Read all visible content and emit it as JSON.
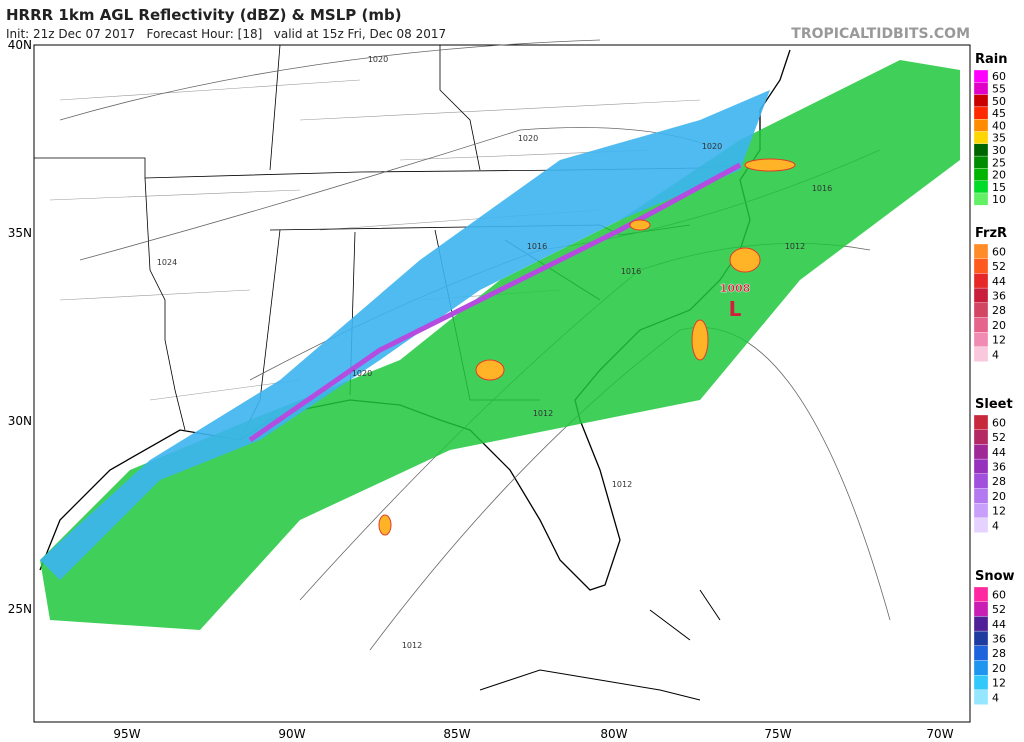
{
  "header": {
    "title": "HRRR 1km AGL Reflectivity (dBZ) & MSLP (mb)",
    "subtitle": "Init: 21z Dec 07 2017   Forecast Hour: [18]   valid at 15z Fri, Dec 08 2017",
    "site": "TROPICALTIDBITS.COM"
  },
  "map": {
    "lat_labels": [
      "40N",
      "35N",
      "30N",
      "25N"
    ],
    "lon_labels": [
      "95W",
      "90W",
      "85W",
      "80W",
      "75W",
      "70W"
    ],
    "isobar_labels": [
      "1020",
      "1020",
      "1020",
      "1024",
      "1016",
      "1016",
      "1016",
      "1012",
      "1020",
      "1012",
      "1012",
      "1012"
    ],
    "low": {
      "pressure": "1008",
      "symbol": "L"
    }
  },
  "legend": [
    {
      "title": "Rain",
      "labels": [
        60,
        55,
        50,
        45,
        40,
        35,
        30,
        25,
        20,
        15,
        10
      ],
      "colors": [
        "#ff00ff",
        "#e000c8",
        "#c80000",
        "#ff2800",
        "#ff8c00",
        "#ffd700",
        "#006400",
        "#008c00",
        "#00b400",
        "#00dc28",
        "#64f064"
      ]
    },
    {
      "title": "FrzR",
      "labels": [
        60,
        52,
        44,
        36,
        28,
        20,
        12,
        4
      ],
      "colors": [
        "#ff8c28",
        "#ff5a1e",
        "#e62828",
        "#c81e3c",
        "#d24664",
        "#e6648c",
        "#f08cb4",
        "#fac8dc"
      ]
    },
    {
      "title": "Sleet",
      "labels": [
        60,
        52,
        44,
        36,
        28,
        20,
        12,
        4
      ],
      "colors": [
        "#c8283c",
        "#b42864",
        "#a02896",
        "#9632be",
        "#a050dc",
        "#b478f0",
        "#c8a0fa",
        "#e6d2ff"
      ]
    },
    {
      "title": "Snow",
      "labels": [
        60,
        52,
        44,
        36,
        28,
        20,
        12,
        4
      ],
      "colors": [
        "#ff28a0",
        "#c81eb4",
        "#501e96",
        "#1e3ca0",
        "#1e64dc",
        "#1e96f0",
        "#32c8fa",
        "#96e6ff"
      ]
    }
  ]
}
